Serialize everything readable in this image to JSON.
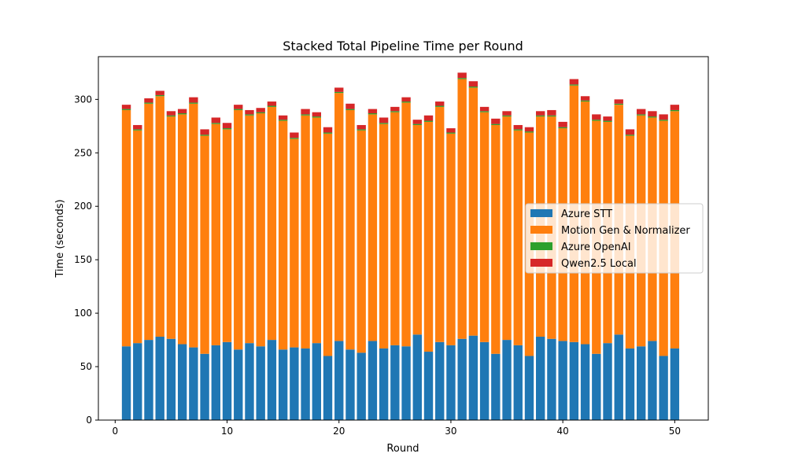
{
  "chart_data": {
    "type": "bar",
    "stacked": true,
    "title": "Stacked Total Pipeline Time per Round",
    "xlabel": "Round",
    "ylabel": "Time (seconds)",
    "xlim": [
      -1.5,
      53
    ],
    "ylim": [
      0,
      340
    ],
    "xticks": [
      0,
      10,
      20,
      30,
      40,
      50
    ],
    "yticks": [
      0,
      50,
      100,
      150,
      200,
      250,
      300
    ],
    "grid": false,
    "legend_position": "center-right",
    "x": [
      1,
      2,
      3,
      4,
      5,
      6,
      7,
      8,
      9,
      10,
      11,
      12,
      13,
      14,
      15,
      16,
      17,
      18,
      19,
      20,
      21,
      22,
      23,
      24,
      25,
      26,
      27,
      28,
      29,
      30,
      31,
      32,
      33,
      34,
      35,
      36,
      37,
      38,
      39,
      40,
      41,
      42,
      43,
      44,
      45,
      46,
      47,
      48,
      49,
      50
    ],
    "series": [
      {
        "name": "Azure STT",
        "color": "#1f77b4",
        "values": [
          69,
          72,
          75,
          78,
          76,
          71,
          68,
          62,
          70,
          73,
          66,
          72,
          69,
          75,
          66,
          68,
          67,
          72,
          60,
          74,
          66,
          63,
          74,
          67,
          70,
          69,
          80,
          64,
          73,
          70,
          76,
          79,
          73,
          62,
          75,
          70,
          60,
          78,
          76,
          74,
          73,
          71,
          62,
          72,
          80,
          67,
          69,
          74,
          60,
          67
        ]
      },
      {
        "name": "Motion Gen & Normalizer",
        "color": "#ff7f0e",
        "values": [
          221,
          199,
          221,
          225,
          208,
          215,
          228,
          204,
          207,
          199,
          224,
          213,
          218,
          218,
          214,
          195,
          218,
          211,
          208,
          232,
          224,
          208,
          212,
          210,
          218,
          228,
          196,
          215,
          220,
          198,
          243,
          232,
          215,
          214,
          209,
          201,
          209,
          206,
          208,
          199,
          240,
          227,
          218,
          207,
          215,
          199,
          216,
          209,
          220,
          222
        ]
      },
      {
        "name": "Azure OpenAI",
        "color": "#2ca02c",
        "values": [
          1,
          1,
          1,
          1,
          1,
          1,
          1,
          1,
          1,
          1,
          1,
          1,
          1,
          1,
          1,
          1,
          1,
          1,
          1,
          1,
          1,
          1,
          1,
          1,
          1,
          1,
          1,
          1,
          1,
          1,
          1,
          1,
          1,
          1,
          1,
          1,
          1,
          1,
          1,
          1,
          1,
          1,
          1,
          1,
          1,
          1,
          1,
          1,
          1,
          1
        ]
      },
      {
        "name": "Qwen2.5 Local",
        "color": "#d62728",
        "values": [
          4,
          4,
          4,
          4,
          4,
          4,
          5,
          5,
          5,
          5,
          4,
          4,
          4,
          4,
          4,
          5,
          5,
          4,
          5,
          4,
          5,
          4,
          4,
          5,
          4,
          4,
          4,
          5,
          4,
          4,
          5,
          5,
          4,
          5,
          4,
          4,
          4,
          4,
          5,
          5,
          5,
          4,
          5,
          4,
          4,
          5,
          5,
          5,
          5,
          5
        ]
      }
    ]
  }
}
